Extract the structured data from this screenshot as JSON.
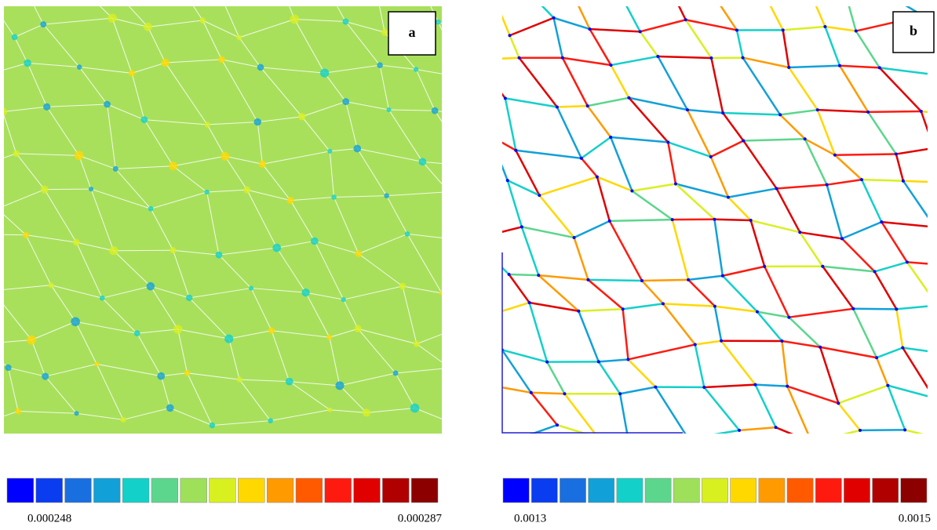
{
  "panels": [
    {
      "label": "a",
      "colorbar": {
        "colors": [
          "#0000ff",
          "#0a3cf0",
          "#1a6fe0",
          "#12a0d8",
          "#13d0c8",
          "#5cd68c",
          "#9ee05a",
          "#d8f020",
          "#ffd800",
          "#ff9a00",
          "#ff5a00",
          "#ff1a10",
          "#e00000",
          "#b00000",
          "#8c0000"
        ],
        "min_label": "0.000248",
        "max_label": "0.000287"
      }
    },
    {
      "label": "b",
      "colorbar": {
        "colors": [
          "#0000ff",
          "#0a3cf0",
          "#1a6fe0",
          "#12a0d8",
          "#13d0c8",
          "#5cd68c",
          "#9ee05a",
          "#d8f020",
          "#ffd800",
          "#ff9a00",
          "#ff5a00",
          "#ff1a10",
          "#e00000",
          "#b00000",
          "#8c0000"
        ],
        "min_label": "0.0013",
        "max_label": "0.0015"
      }
    }
  ]
}
